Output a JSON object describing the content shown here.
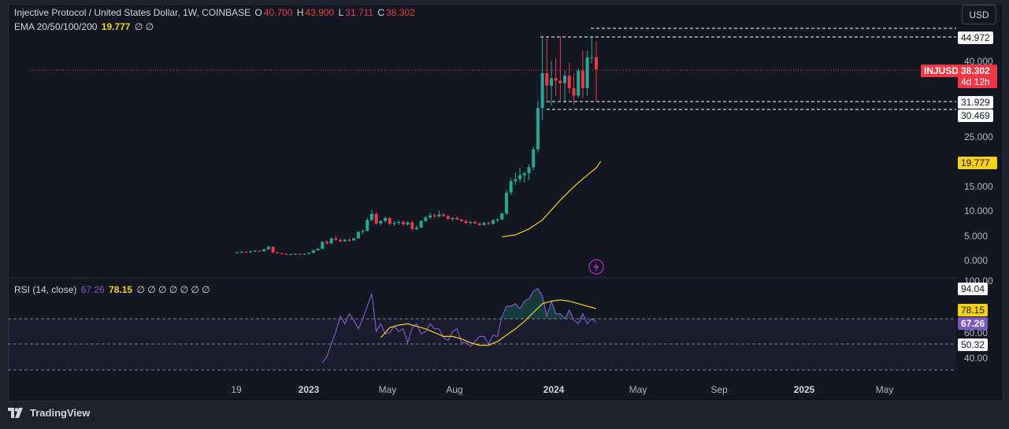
{
  "legend": {
    "symbol_title": "Injective Protocol / United States Dollar, 1W, COINBASE",
    "o_label": "O",
    "o_value": "40.700",
    "h_label": "H",
    "h_value": "43.900",
    "l_label": "L",
    "l_value": "31.711",
    "c_label": "C",
    "c_value": "38.302",
    "ema_title": "EMA 20/50/100/200",
    "ema_value": "19.777",
    "ema_empty": "∅ ∅",
    "rsi_title": "RSI (14, close)",
    "rsi_value": "67.26",
    "rsi_ma_value": "78.15",
    "rsi_empty": "∅ ∅ ∅ ∅ ∅ ∅ ∅"
  },
  "currency_button": "USD",
  "price_axis": {
    "ticks": [
      "40.000",
      "25.000",
      "15.000",
      "10.000",
      "5.000",
      "0.000"
    ],
    "tag_44972": "44.972",
    "tag_31929": "31.929",
    "tag_30469": "30.469",
    "symbol_tag": "INJUSD",
    "last_price": "38.302",
    "countdown": "4d 12h",
    "ema_tag": "19.777"
  },
  "rsi_axis": {
    "ticks": [
      "100.00",
      "60.00",
      "40.00"
    ],
    "tag_9404": "94.04",
    "tag_7815": "78.15",
    "tag_6726": "67.26",
    "tag_5032": "50.32"
  },
  "time_axis": {
    "labels": [
      {
        "text": "19",
        "bold": false
      },
      {
        "text": "2023",
        "bold": true
      },
      {
        "text": "May",
        "bold": false
      },
      {
        "text": "Aug",
        "bold": false
      },
      {
        "text": "2024",
        "bold": true
      },
      {
        "text": "May",
        "bold": false
      },
      {
        "text": "Sep",
        "bold": false
      },
      {
        "text": "2025",
        "bold": true
      },
      {
        "text": "May",
        "bold": false
      }
    ]
  },
  "footer": {
    "brand": "TradingView"
  },
  "colors": {
    "up": "#22ab94",
    "down": "#f23645",
    "ema": "#f7d117",
    "rsi": "#7e57c2",
    "rsi_ma": "#f7d117",
    "bg": "#131722"
  },
  "chart_data": {
    "type": "candlestick",
    "symbol": "INJUSD",
    "interval": "1W",
    "price_range": [
      0,
      44.972
    ],
    "levels": [
      44.972,
      31.929,
      30.469
    ],
    "last_close": 38.302,
    "candles": [
      [
        1.5,
        1.6,
        1.4,
        1.5
      ],
      [
        1.5,
        1.7,
        1.4,
        1.6
      ],
      [
        1.6,
        1.7,
        1.5,
        1.5
      ],
      [
        1.5,
        1.8,
        1.4,
        1.7
      ],
      [
        1.7,
        1.9,
        1.6,
        1.8
      ],
      [
        1.8,
        2.0,
        1.6,
        1.7
      ],
      [
        1.7,
        2.2,
        1.6,
        2.1
      ],
      [
        2.1,
        2.8,
        2.0,
        2.6
      ],
      [
        2.6,
        2.7,
        1.3,
        1.5
      ],
      [
        1.5,
        1.6,
        1.2,
        1.3
      ],
      [
        1.3,
        1.4,
        1.1,
        1.2
      ],
      [
        1.2,
        1.3,
        1.0,
        1.1
      ],
      [
        1.1,
        1.2,
        1.0,
        1.1
      ],
      [
        1.1,
        1.3,
        1.0,
        1.2
      ],
      [
        1.2,
        1.3,
        1.0,
        1.1
      ],
      [
        1.1,
        1.3,
        1.0,
        1.2
      ],
      [
        1.2,
        1.5,
        1.1,
        1.4
      ],
      [
        1.4,
        2.0,
        1.3,
        1.9
      ],
      [
        1.9,
        2.4,
        1.8,
        2.2
      ],
      [
        2.2,
        3.8,
        2.1,
        3.6
      ],
      [
        3.6,
        4.0,
        3.0,
        3.3
      ],
      [
        3.3,
        4.5,
        3.2,
        4.3
      ],
      [
        4.3,
        4.9,
        3.8,
        4.0
      ],
      [
        4.0,
        4.3,
        3.5,
        3.7
      ],
      [
        3.7,
        4.2,
        3.6,
        4.0
      ],
      [
        4.0,
        4.4,
        3.6,
        3.9
      ],
      [
        3.9,
        4.5,
        3.8,
        4.3
      ],
      [
        4.3,
        5.8,
        4.2,
        5.6
      ],
      [
        5.6,
        6.1,
        5.2,
        5.8
      ],
      [
        5.8,
        8.5,
        5.7,
        8.0
      ],
      [
        8.0,
        10.0,
        7.8,
        9.2
      ],
      [
        9.2,
        9.6,
        7.0,
        7.3
      ],
      [
        7.3,
        8.0,
        6.9,
        7.8
      ],
      [
        7.8,
        8.7,
        7.5,
        8.4
      ],
      [
        8.4,
        8.6,
        7.0,
        7.2
      ],
      [
        7.2,
        7.8,
        6.8,
        7.4
      ],
      [
        7.4,
        8.0,
        7.0,
        7.6
      ],
      [
        7.6,
        7.9,
        6.9,
        7.1
      ],
      [
        7.1,
        7.8,
        6.9,
        7.5
      ],
      [
        7.5,
        7.9,
        5.8,
        6.2
      ],
      [
        6.2,
        6.9,
        5.9,
        6.5
      ],
      [
        6.5,
        8.0,
        6.4,
        7.8
      ],
      [
        7.8,
        8.8,
        7.6,
        8.5
      ],
      [
        8.5,
        9.5,
        8.2,
        8.9
      ],
      [
        8.9,
        9.3,
        8.4,
        8.7
      ],
      [
        8.7,
        9.9,
        8.5,
        9.1
      ],
      [
        9.1,
        9.4,
        8.6,
        8.8
      ],
      [
        8.8,
        9.0,
        8.0,
        8.2
      ],
      [
        8.2,
        8.6,
        7.8,
        8.4
      ],
      [
        8.4,
        8.7,
        7.9,
        8.1
      ],
      [
        8.1,
        8.3,
        7.6,
        7.8
      ],
      [
        7.8,
        8.1,
        7.2,
        7.4
      ],
      [
        7.4,
        7.8,
        7.1,
        7.6
      ],
      [
        7.6,
        7.9,
        7.2,
        7.3
      ],
      [
        7.3,
        7.5,
        6.8,
        7.0
      ],
      [
        7.0,
        7.6,
        6.9,
        7.4
      ],
      [
        7.4,
        7.7,
        7.0,
        7.2
      ],
      [
        7.2,
        8.2,
        7.1,
        7.9
      ],
      [
        7.9,
        8.4,
        7.6,
        8.1
      ],
      [
        8.1,
        9.5,
        8.0,
        9.3
      ],
      [
        9.3,
        14.0,
        9.0,
        13.5
      ],
      [
        13.5,
        16.5,
        13.0,
        15.8
      ],
      [
        15.8,
        17.5,
        15.0,
        16.2
      ],
      [
        16.2,
        18.5,
        15.5,
        17.0
      ],
      [
        17.0,
        17.8,
        15.6,
        17.4
      ],
      [
        17.4,
        19.2,
        16.0,
        18.6
      ],
      [
        18.6,
        22.8,
        18.0,
        22.2
      ],
      [
        22.2,
        32.0,
        21.5,
        30.5
      ],
      [
        30.5,
        45.0,
        28.0,
        37.5
      ],
      [
        37.5,
        44.5,
        31.5,
        35.0
      ],
      [
        35.0,
        40.0,
        31.0,
        36.5
      ],
      [
        36.5,
        40.5,
        33.0,
        36.0
      ],
      [
        36.0,
        45.0,
        32.0,
        35.5
      ],
      [
        35.5,
        38.0,
        31.5,
        37.0
      ],
      [
        37.0,
        39.5,
        33.5,
        34.5
      ],
      [
        34.5,
        37.5,
        31.2,
        33.0
      ],
      [
        33.0,
        38.5,
        32.5,
        38.0
      ],
      [
        38.0,
        42.0,
        32.5,
        34.5
      ],
      [
        34.5,
        42.0,
        33.0,
        40.7
      ],
      [
        40.7,
        45.0,
        39.5,
        40.7
      ],
      [
        40.7,
        43.9,
        31.7,
        38.3
      ]
    ],
    "ema20": [
      [
        59,
        4.6
      ],
      [
        62,
        5.0
      ],
      [
        65,
        6.2
      ],
      [
        68,
        8.0
      ],
      [
        70,
        10.0
      ],
      [
        72,
        12.0
      ],
      [
        74,
        13.8
      ],
      [
        76,
        15.5
      ],
      [
        78,
        17.0
      ],
      [
        80,
        18.5
      ],
      [
        81,
        19.777
      ]
    ],
    "rsi_range": [
      0,
      100
    ],
    "rsi_levels": [
      70,
      50,
      30
    ],
    "rsi": [
      [
        19,
        35
      ],
      [
        20,
        40
      ],
      [
        21,
        50
      ],
      [
        22,
        60
      ],
      [
        23,
        72
      ],
      [
        24,
        66
      ],
      [
        25,
        74
      ],
      [
        26,
        69
      ],
      [
        27,
        62
      ],
      [
        28,
        70
      ],
      [
        29,
        80
      ],
      [
        30,
        90
      ],
      [
        31,
        60
      ],
      [
        32,
        66
      ],
      [
        33,
        58
      ],
      [
        34,
        59
      ],
      [
        35,
        64
      ],
      [
        36,
        60
      ],
      [
        37,
        62
      ],
      [
        38,
        51
      ],
      [
        39,
        63
      ],
      [
        40,
        66
      ],
      [
        41,
        58
      ],
      [
        42,
        60
      ],
      [
        43,
        66
      ],
      [
        44,
        62
      ],
      [
        45,
        62
      ],
      [
        46,
        55
      ],
      [
        47,
        53
      ],
      [
        48,
        60
      ],
      [
        49,
        62
      ],
      [
        50,
        51
      ],
      [
        51,
        51
      ],
      [
        52,
        48
      ],
      [
        53,
        52
      ],
      [
        54,
        56
      ],
      [
        55,
        56
      ],
      [
        56,
        50
      ],
      [
        57,
        57
      ],
      [
        58,
        56
      ],
      [
        59,
        72
      ],
      [
        60,
        80
      ],
      [
        61,
        80
      ],
      [
        62,
        82
      ],
      [
        63,
        78
      ],
      [
        64,
        84
      ],
      [
        65,
        86
      ],
      [
        66,
        92
      ],
      [
        67,
        94
      ],
      [
        68,
        88
      ],
      [
        69,
        72
      ],
      [
        70,
        84
      ],
      [
        71,
        74
      ],
      [
        72,
        74
      ],
      [
        73,
        70
      ],
      [
        74,
        77
      ],
      [
        75,
        69
      ],
      [
        76,
        66
      ],
      [
        77,
        74
      ],
      [
        78,
        66
      ],
      [
        79,
        70
      ],
      [
        80,
        67.26
      ]
    ],
    "rsi_ma": [
      [
        32,
        55
      ],
      [
        34,
        63
      ],
      [
        36,
        65
      ],
      [
        38,
        66
      ],
      [
        40,
        64
      ],
      [
        42,
        62
      ],
      [
        44,
        59
      ],
      [
        46,
        56
      ],
      [
        48,
        56
      ],
      [
        50,
        54
      ],
      [
        52,
        51
      ],
      [
        54,
        49
      ],
      [
        56,
        49
      ],
      [
        58,
        52
      ],
      [
        60,
        57
      ],
      [
        62,
        62
      ],
      [
        64,
        68
      ],
      [
        66,
        75
      ],
      [
        68,
        82
      ],
      [
        70,
        84
      ],
      [
        72,
        85
      ],
      [
        74,
        84
      ],
      [
        76,
        82
      ],
      [
        78,
        80
      ],
      [
        80,
        78.15
      ]
    ]
  }
}
